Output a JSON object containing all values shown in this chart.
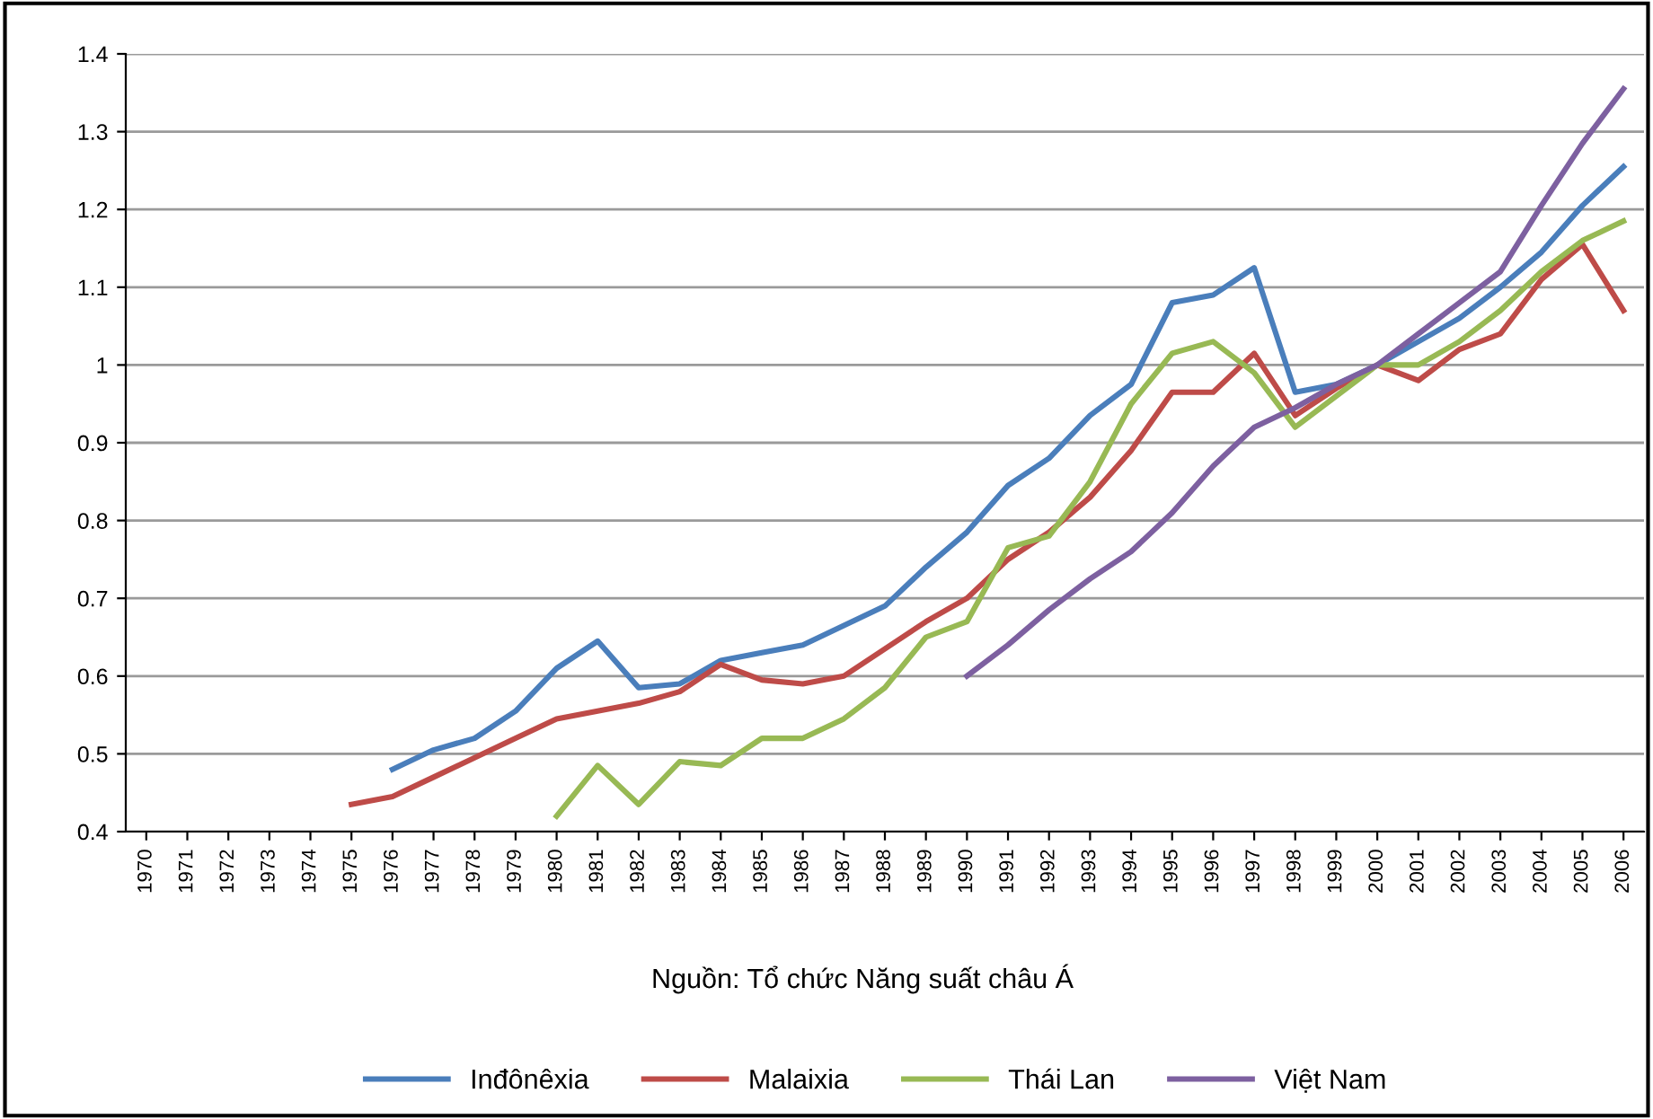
{
  "chart_data": {
    "type": "line",
    "categories": [
      "1970",
      "1971",
      "1972",
      "1973",
      "1974",
      "1975",
      "1976",
      "1977",
      "1978",
      "1979",
      "1980",
      "1981",
      "1982",
      "1983",
      "1984",
      "1985",
      "1986",
      "1987",
      "1988",
      "1989",
      "1990",
      "1991",
      "1992",
      "1993",
      "1994",
      "1995",
      "1996",
      "1997",
      "1998",
      "1999",
      "2000",
      "2001",
      "2002",
      "2003",
      "2004",
      "2005",
      "2006"
    ],
    "series": [
      {
        "name": "Inđônêxia",
        "color": "#4a7ebb",
        "values": [
          null,
          null,
          null,
          null,
          null,
          null,
          0.48,
          0.505,
          0.52,
          0.555,
          0.61,
          0.645,
          0.585,
          0.59,
          0.62,
          0.63,
          0.64,
          0.665,
          0.69,
          0.74,
          0.785,
          0.845,
          0.88,
          0.935,
          0.975,
          1.08,
          1.09,
          1.125,
          0.965,
          0.975,
          1.0,
          1.03,
          1.06,
          1.1,
          1.145,
          1.205,
          1.255
        ]
      },
      {
        "name": "Malaixia",
        "color": "#be4b48",
        "values": [
          null,
          null,
          null,
          null,
          null,
          0.435,
          0.445,
          0.47,
          0.495,
          0.52,
          0.545,
          0.555,
          0.565,
          0.58,
          0.615,
          0.595,
          0.59,
          0.6,
          0.635,
          0.67,
          0.7,
          0.75,
          0.785,
          0.83,
          0.89,
          0.965,
          0.965,
          1.015,
          0.935,
          0.97,
          1.0,
          0.98,
          1.02,
          1.04,
          1.11,
          1.155,
          1.07
        ]
      },
      {
        "name": "Thái Lan",
        "color": "#98b954",
        "values": [
          null,
          null,
          null,
          null,
          null,
          null,
          null,
          null,
          null,
          null,
          0.42,
          0.485,
          0.435,
          0.49,
          0.485,
          0.52,
          0.52,
          0.545,
          0.585,
          0.65,
          0.67,
          0.765,
          0.78,
          0.85,
          0.95,
          1.015,
          1.03,
          0.99,
          0.92,
          0.96,
          1.0,
          1.0,
          1.03,
          1.07,
          1.12,
          1.16,
          1.185
        ]
      },
      {
        "name": "Việt Nam",
        "color": "#7d60a0",
        "values": [
          null,
          null,
          null,
          null,
          null,
          null,
          null,
          null,
          null,
          null,
          null,
          null,
          null,
          null,
          null,
          null,
          null,
          null,
          null,
          null,
          0.6,
          0.64,
          0.685,
          0.725,
          0.76,
          0.81,
          0.87,
          0.92,
          0.945,
          0.975,
          1.0,
          1.04,
          1.08,
          1.12,
          1.205,
          1.285,
          1.355
        ]
      }
    ],
    "ylim": [
      0.4,
      1.4
    ],
    "yticks": [
      0.4,
      0.5,
      0.6,
      0.7,
      0.8,
      0.9,
      1,
      1.1,
      1.2,
      1.3,
      1.4
    ],
    "grid": "y",
    "legend": "bottom",
    "marker": "none",
    "line_style": "solid",
    "annotations": [
      "Nguồn: Tổ chức Năng suất châu Á"
    ]
  }
}
